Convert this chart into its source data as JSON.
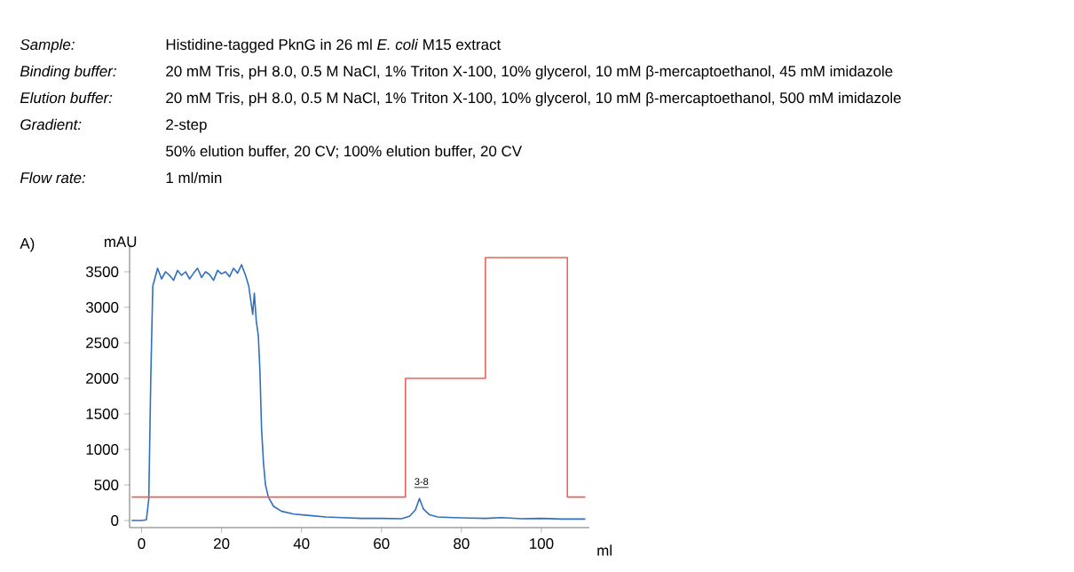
{
  "chart_data": {
    "type": "line",
    "xlabel": "ml",
    "ylabel": "mAU",
    "xlim": [
      -3,
      112
    ],
    "ylim": [
      -100,
      3850
    ],
    "xticks": [
      0,
      20,
      40,
      60,
      80,
      100
    ],
    "yticks": [
      0,
      500,
      1000,
      1500,
      2000,
      2500,
      3000,
      3500
    ],
    "annotations": [
      "Sample:",
      "Histidine-tagged PknG in 26 ml *E. coli* M15 extract",
      "Binding buffer:",
      "20 mM Tris, pH 8.0, 0.5 M NaCl, 1% Triton X-100, 10% glycerol, 10 mM β-mercaptoethanol, 45 mM imidazole",
      "Elution buffer:",
      "20 mM Tris, pH 8.0, 0.5 M NaCl, 1% Triton X-100, 10% glycerol, 10 mM β-mercaptoethanol, 500 mM imidazole",
      "Gradient:",
      "2-step",
      "50% elution buffer, 20 CV; 100% elution buffer, 20 CV",
      "Flow rate:",
      "1 ml/min",
      "A)",
      {
        "text": "3-8",
        "x": 70,
        "y": 420
      }
    ],
    "series": [
      {
        "color": "#2e6fbf",
        "x": [
          -2.5,
          0,
          1.2,
          1.8,
          2.3,
          2.8,
          3.3,
          4,
          5,
          6,
          7,
          8,
          9,
          10,
          11,
          12,
          13,
          14,
          15,
          16,
          17,
          18,
          19,
          20,
          21,
          22,
          23,
          24,
          25,
          26,
          26.8,
          27.3,
          27.8,
          28.2,
          28.7,
          29.2,
          29.6,
          30.0,
          30.5,
          31.0,
          31.7,
          33,
          35,
          38,
          42,
          46,
          50,
          55,
          60,
          65,
          67,
          68.5,
          69.5,
          70.5,
          72,
          74,
          78,
          82,
          86,
          90,
          95,
          100,
          105,
          111
        ],
        "values": [
          0,
          0,
          10,
          300,
          2000,
          3300,
          3400,
          3550,
          3400,
          3500,
          3450,
          3380,
          3520,
          3450,
          3500,
          3400,
          3480,
          3550,
          3420,
          3500,
          3460,
          3380,
          3520,
          3470,
          3500,
          3430,
          3550,
          3480,
          3600,
          3450,
          3300,
          3100,
          2900,
          3200,
          2800,
          2600,
          2100,
          1300,
          800,
          500,
          330,
          200,
          130,
          90,
          70,
          50,
          40,
          30,
          30,
          25,
          60,
          150,
          310,
          160,
          80,
          50,
          40,
          35,
          30,
          40,
          25,
          30,
          20,
          20
        ]
      },
      {
        "type": "step",
        "color": "#e8645a",
        "x": [
          -2.5,
          66,
          86,
          106.5,
          111
        ],
        "values": [
          330,
          2000,
          3700,
          330,
          330
        ]
      }
    ]
  }
}
